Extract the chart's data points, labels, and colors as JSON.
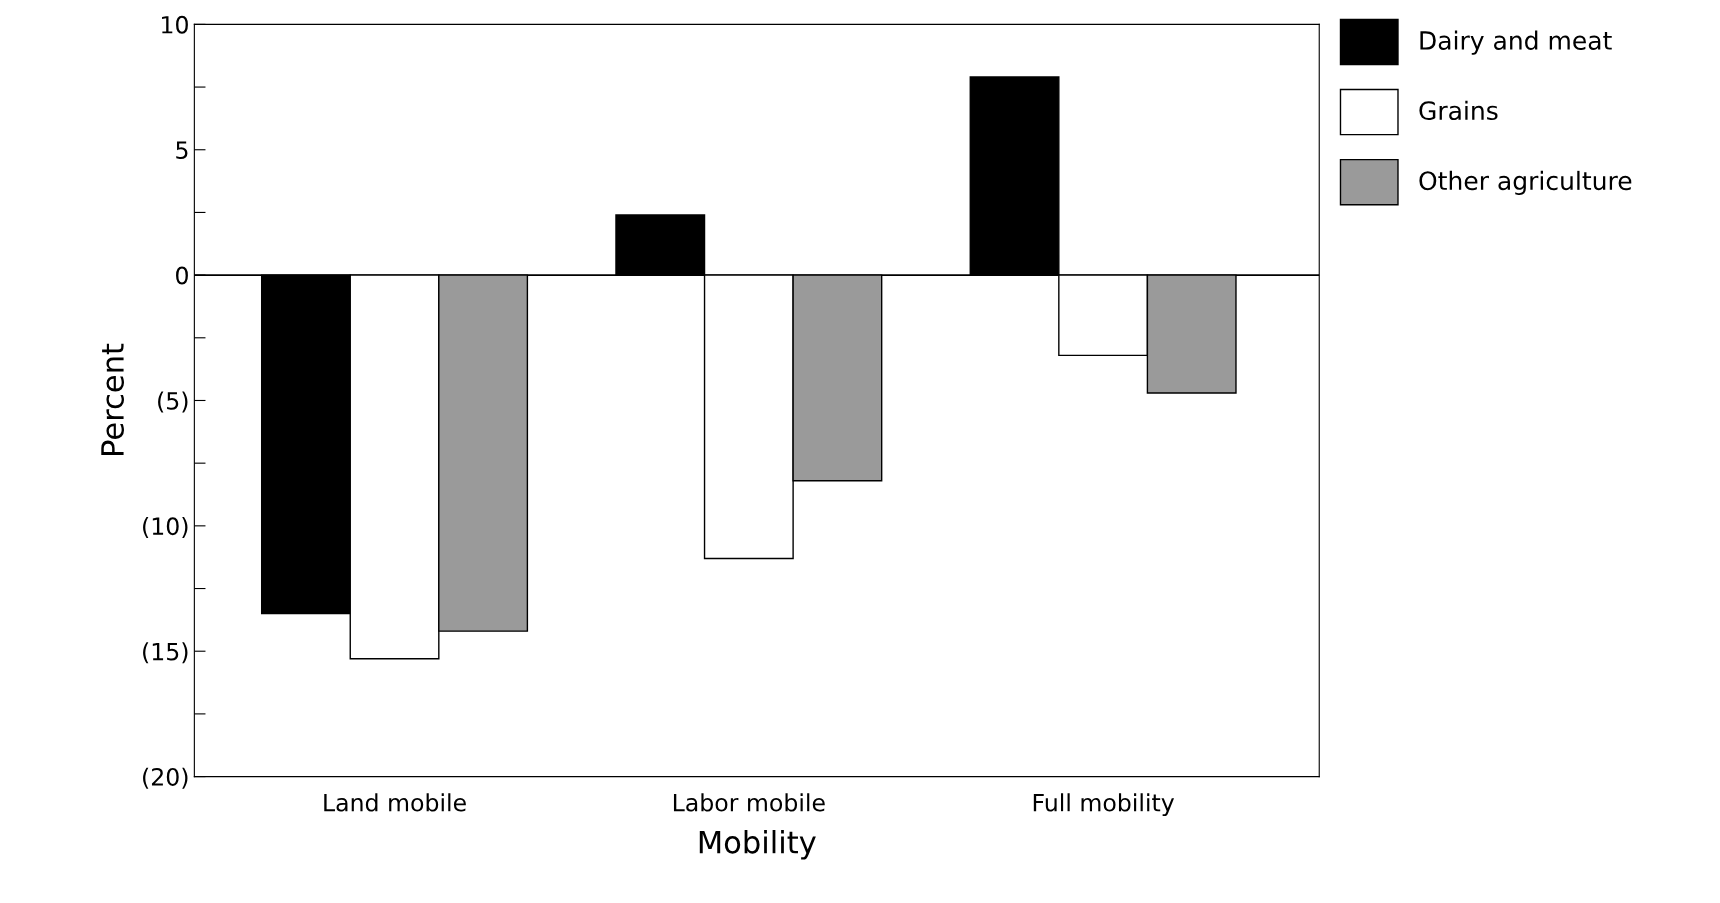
{
  "chart_data": {
    "type": "bar",
    "xlabel": "Mobility",
    "ylabel": "Percent",
    "categories": [
      "Land mobile",
      "Labor mobile",
      "Full mobility"
    ],
    "series": [
      {
        "name": "Dairy and meat",
        "color": "#000000",
        "values": [
          -13.5,
          2.4,
          7.9
        ]
      },
      {
        "name": "Grains",
        "color": "#ffffff",
        "values": [
          -15.3,
          -11.3,
          -3.2
        ]
      },
      {
        "name": "Other agriculture",
        "color": "#9a9a9a",
        "values": [
          -14.2,
          -8.2,
          -4.7
        ]
      }
    ],
    "ylim": [
      -20,
      10
    ],
    "yticks": [
      {
        "value": -20,
        "label": "(20)"
      },
      {
        "value": -17.5,
        "label": null
      },
      {
        "value": -15,
        "label": "(15)"
      },
      {
        "value": -12.5,
        "label": null
      },
      {
        "value": -10,
        "label": "(10)"
      },
      {
        "value": -7.5,
        "label": null
      },
      {
        "value": -5,
        "label": "(5)"
      },
      {
        "value": -2.5,
        "label": null
      },
      0,
      {
        "value": 2.5,
        "label": null
      },
      5,
      {
        "value": 7.5,
        "label": null
      },
      10
    ],
    "ref_lines": [
      {
        "axis": "y",
        "value": 0,
        "color": "#000000"
      }
    ],
    "grid": false,
    "legend": "top right"
  }
}
